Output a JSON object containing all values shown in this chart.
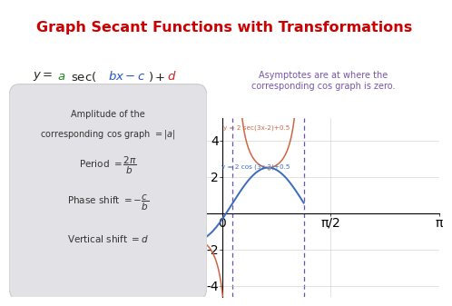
{
  "title": "Graph Secant Functions with Transformations",
  "title_color": "#cc0000",
  "title_fontsize": 11.5,
  "page_bg": "#ffffff",
  "asymptote_note": "Asymptotes are at where the\ncorresponding cos graph is zero.",
  "asymptote_note_color": "#7755aa",
  "formula_box_color": "#e2e2e6",
  "cos_color": "#3a6bbf",
  "sec_color": "#cc6644",
  "asymptote_color": "#5540aa",
  "label_sec": "y = 2 sec(3x-2)+0.5",
  "label_cos": "y = 2 cos (3x-2)+0.5",
  "label_sec_color": "#cc6644",
  "label_cos_color": "#3a6bbf",
  "xmin": -0.22,
  "xmax": 1.18,
  "ymin": -4.6,
  "ymax": 5.2,
  "yticks": [
    -4,
    -2,
    2,
    4
  ],
  "xtick_vals": [
    0,
    1.5707963,
    3.14159265
  ],
  "xtick_labels": [
    "0",
    "π/2",
    "π"
  ]
}
